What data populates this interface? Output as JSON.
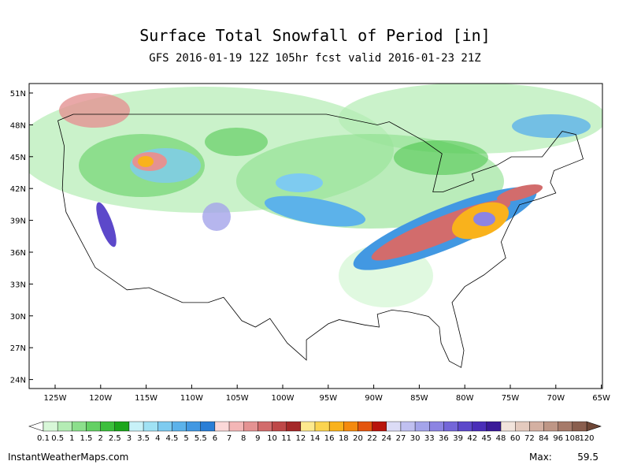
{
  "header": {
    "title": "Surface Total Snowfall of Period [in]",
    "subtitle": "GFS 2016-01-19 12Z 105hr fcst valid 2016-01-23 21Z"
  },
  "map": {
    "lat_labels": [
      "51N",
      "48N",
      "45N",
      "42N",
      "39N",
      "36N",
      "33N",
      "30N",
      "27N",
      "24N"
    ],
    "lon_labels": [
      "125W",
      "120W",
      "115W",
      "110W",
      "105W",
      "100W",
      "95W",
      "90W",
      "85W",
      "80W",
      "75W",
      "70W",
      "65W"
    ]
  },
  "colorbar": {
    "levels": [
      0.1,
      0.5,
      1,
      1.5,
      2,
      2.5,
      3,
      3.5,
      4,
      4.5,
      5,
      5.5,
      6,
      7,
      8,
      9,
      10,
      11,
      12,
      14,
      16,
      18,
      20,
      22,
      24,
      27,
      30,
      33,
      36,
      39,
      42,
      45,
      48,
      60,
      72,
      84,
      96,
      108,
      120
    ],
    "colors": [
      "#d8f7d8",
      "#b4ecb4",
      "#8cdf8c",
      "#64d064",
      "#3cbf3c",
      "#1ca61c",
      "#c8f2f8",
      "#a0e2f4",
      "#7ecbf0",
      "#5cb2ea",
      "#4298e2",
      "#2a7ed6",
      "#fbd8d8",
      "#f3b6b6",
      "#e49292",
      "#d26c6c",
      "#be4848",
      "#a42828",
      "#fde98e",
      "#fbd450",
      "#f9b21c",
      "#f48a0e",
      "#e4560e",
      "#b8140c",
      "#dcdcf6",
      "#c0c0f0",
      "#a4a4ea",
      "#8c84e2",
      "#7466d8",
      "#5c48ca",
      "#4a2eb8",
      "#3a1a98",
      "#f2e4dc",
      "#e4cabe",
      "#d4b0a2",
      "#be9686",
      "#a67a6a",
      "#8a5e4e"
    ],
    "under_color": "#ffffff",
    "over_color": "#6e4636"
  },
  "footer": {
    "site": "InstantWeatherMaps.com",
    "max_label": "Max:",
    "max_value": 59.5
  }
}
